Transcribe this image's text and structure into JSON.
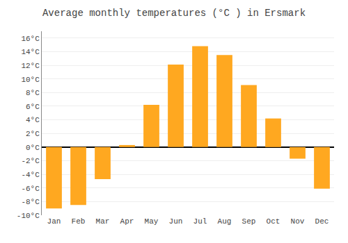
{
  "chart_data": {
    "type": "bar",
    "title": "Average monthly temperatures (°C ) in Ersmark",
    "categories": [
      "Jan",
      "Feb",
      "Mar",
      "Apr",
      "May",
      "Jun",
      "Jul",
      "Aug",
      "Sep",
      "Oct",
      "Nov",
      "Dec"
    ],
    "values": [
      -9.0,
      -8.5,
      -4.7,
      0.3,
      6.2,
      12.1,
      14.8,
      13.5,
      9.1,
      4.2,
      -1.7,
      -6.1
    ],
    "color": "#FFA820",
    "ylim": [
      -10,
      17
    ],
    "yticks": [
      {
        "value": -10,
        "label": "-10°C"
      },
      {
        "value": -8,
        "label": "-8°C"
      },
      {
        "value": -6,
        "label": "-6°C"
      },
      {
        "value": -4,
        "label": "-4°C"
      },
      {
        "value": -2,
        "label": "-2°C"
      },
      {
        "value": 0,
        "label": "0°C"
      },
      {
        "value": 2,
        "label": "2°C"
      },
      {
        "value": 4,
        "label": "4°C"
      },
      {
        "value": 6,
        "label": "6°C"
      },
      {
        "value": 8,
        "label": "8°C"
      },
      {
        "value": 10,
        "label": "10°C"
      },
      {
        "value": 12,
        "label": "12°C"
      },
      {
        "value": 14,
        "label": "14°C"
      },
      {
        "value": 16,
        "label": "16°C"
      }
    ],
    "grid": true
  }
}
